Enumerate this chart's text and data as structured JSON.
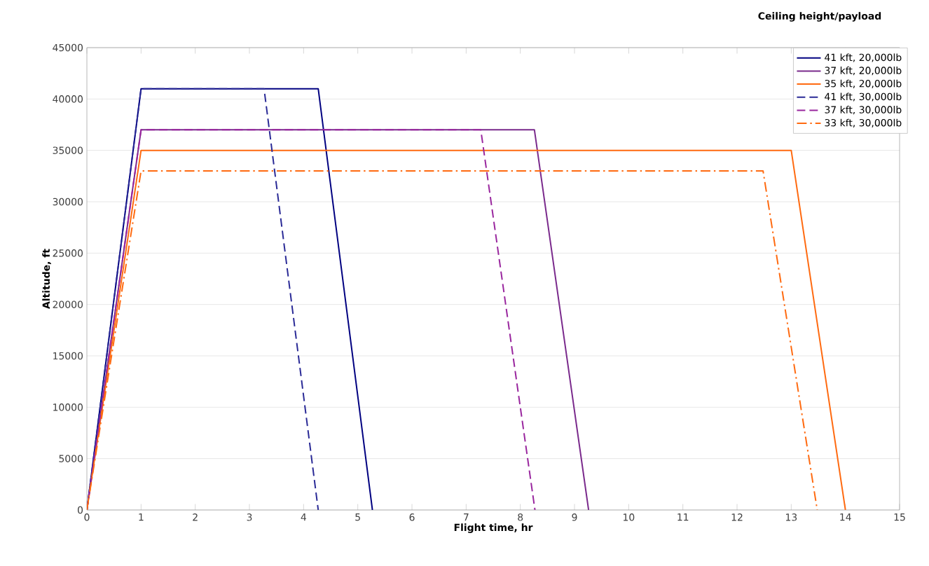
{
  "chart_data": {
    "type": "line",
    "xlabel": "Flight time, hr",
    "ylabel": "Altitude, ft",
    "legend_title": "Ceiling height/payload",
    "xlim": [
      0,
      15
    ],
    "ylim": [
      0,
      45000
    ],
    "xticks": [
      0,
      1,
      2,
      3,
      4,
      5,
      6,
      7,
      8,
      9,
      10,
      11,
      12,
      13,
      14,
      15
    ],
    "yticks": [
      0,
      5000,
      10000,
      15000,
      20000,
      25000,
      30000,
      35000,
      40000,
      45000
    ],
    "grid": "y",
    "legend": "top right",
    "marker": "none",
    "series": [
      {
        "name": "41 kft, 20,000lb",
        "color": "#000080",
        "line_style": "solid",
        "x": [
          0,
          1,
          4.27,
          5.27
        ],
        "values": [
          0,
          41000,
          41000,
          0
        ]
      },
      {
        "name": "37 kft, 20,000lb",
        "color": "#7a2a8c",
        "line_style": "solid",
        "x": [
          0,
          1,
          8.26,
          9.26
        ],
        "values": [
          0,
          37000,
          37000,
          0
        ]
      },
      {
        "name": "35 kft, 20,000lb",
        "color": "#ff6a10",
        "line_style": "solid",
        "x": [
          0,
          1,
          13,
          14
        ],
        "values": [
          0,
          35000,
          35000,
          0
        ]
      },
      {
        "name": "41 kft, 30,000lb",
        "color": "#2a2a96",
        "line_style": "dashed",
        "x": [
          0,
          1,
          3.27,
          4.27
        ],
        "values": [
          0,
          41000,
          41000,
          0
        ]
      },
      {
        "name": "37 kft, 30,000lb",
        "color": "#99269e",
        "line_style": "dashed",
        "x": [
          0,
          1,
          7.27,
          8.27
        ],
        "values": [
          0,
          37000,
          37000,
          0
        ]
      },
      {
        "name": "33 kft, 30,000lb",
        "color": "#ff6a10",
        "line_style": "dashdot",
        "x": [
          0,
          1,
          12.48,
          13.48
        ],
        "values": [
          0,
          33000,
          33000,
          0
        ]
      }
    ]
  }
}
